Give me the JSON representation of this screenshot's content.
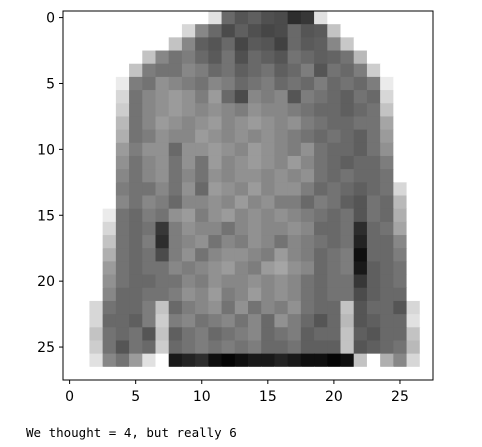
{
  "chart_data": {
    "type": "heatmap",
    "colormap": "gray_r",
    "value_range": [
      0,
      255
    ],
    "xlim": [
      -0.5,
      27.5
    ],
    "ylim": [
      27.5,
      -0.5
    ],
    "x_ticks": [
      0,
      5,
      10,
      15,
      20,
      25
    ],
    "y_ticks": [
      0,
      5,
      10,
      15,
      20,
      25
    ],
    "x_tick_labels": [
      "0",
      "5",
      "10",
      "15",
      "20",
      "25"
    ],
    "y_tick_labels": [
      "0",
      "5",
      "10",
      "15",
      "20",
      "25"
    ],
    "grid": false,
    "rows": [
      [
        0,
        0,
        0,
        0,
        0,
        0,
        0,
        0,
        0,
        0,
        0,
        30,
        150,
        170,
        160,
        175,
        180,
        210,
        200,
        30,
        0,
        0,
        0,
        0,
        0,
        0,
        0,
        0
      ],
      [
        0,
        0,
        0,
        0,
        0,
        0,
        0,
        0,
        0,
        40,
        120,
        150,
        180,
        160,
        175,
        185,
        180,
        150,
        170,
        165,
        60,
        0,
        0,
        0,
        0,
        0,
        0,
        0
      ],
      [
        0,
        0,
        0,
        0,
        0,
        0,
        0,
        0,
        60,
        120,
        160,
        170,
        150,
        185,
        165,
        170,
        190,
        150,
        165,
        160,
        120,
        55,
        0,
        0,
        0,
        0,
        0,
        0
      ],
      [
        0,
        0,
        0,
        0,
        0,
        0,
        60,
        120,
        140,
        130,
        150,
        165,
        140,
        175,
        150,
        160,
        170,
        140,
        150,
        160,
        155,
        140,
        70,
        0,
        0,
        0,
        0,
        0
      ],
      [
        0,
        0,
        0,
        0,
        0,
        60,
        130,
        140,
        140,
        120,
        130,
        150,
        140,
        160,
        150,
        140,
        160,
        150,
        130,
        170,
        140,
        150,
        130,
        50,
        0,
        0,
        0,
        0
      ],
      [
        0,
        0,
        0,
        0,
        20,
        130,
        140,
        110,
        120,
        130,
        140,
        120,
        130,
        150,
        140,
        130,
        150,
        140,
        150,
        130,
        150,
        140,
        150,
        130,
        20,
        0,
        0,
        0
      ],
      [
        0,
        0,
        0,
        0,
        40,
        140,
        120,
        110,
        100,
        110,
        130,
        100,
        150,
        180,
        120,
        130,
        120,
        170,
        130,
        140,
        150,
        160,
        140,
        150,
        40,
        0,
        0,
        0
      ],
      [
        0,
        0,
        0,
        0,
        50,
        140,
        120,
        110,
        100,
        110,
        120,
        110,
        120,
        130,
        110,
        120,
        120,
        130,
        140,
        150,
        150,
        160,
        150,
        140,
        60,
        0,
        0,
        0
      ],
      [
        0,
        0,
        0,
        0,
        70,
        140,
        120,
        100,
        110,
        120,
        110,
        100,
        120,
        110,
        100,
        110,
        120,
        110,
        130,
        140,
        150,
        150,
        140,
        140,
        90,
        0,
        0,
        0
      ],
      [
        0,
        0,
        0,
        0,
        80,
        140,
        130,
        110,
        120,
        120,
        100,
        110,
        120,
        110,
        120,
        110,
        120,
        130,
        140,
        150,
        140,
        150,
        160,
        140,
        100,
        0,
        0,
        0
      ],
      [
        0,
        0,
        0,
        0,
        100,
        130,
        110,
        110,
        150,
        110,
        110,
        100,
        110,
        120,
        100,
        110,
        120,
        130,
        110,
        140,
        150,
        150,
        160,
        140,
        110,
        0,
        0,
        0
      ],
      [
        0,
        0,
        0,
        0,
        110,
        140,
        120,
        110,
        140,
        110,
        140,
        100,
        120,
        110,
        100,
        110,
        120,
        100,
        120,
        140,
        150,
        160,
        150,
        150,
        130,
        0,
        0,
        0
      ],
      [
        0,
        0,
        0,
        0,
        120,
        140,
        120,
        110,
        140,
        120,
        140,
        110,
        120,
        110,
        110,
        120,
        110,
        120,
        110,
        140,
        150,
        140,
        150,
        150,
        140,
        0,
        0,
        0
      ],
      [
        0,
        0,
        0,
        0,
        130,
        140,
        140,
        120,
        140,
        110,
        150,
        100,
        110,
        120,
        100,
        120,
        110,
        110,
        130,
        150,
        140,
        150,
        160,
        150,
        140,
        40,
        0,
        0
      ],
      [
        0,
        0,
        0,
        0,
        120,
        140,
        120,
        130,
        150,
        120,
        120,
        110,
        120,
        100,
        120,
        110,
        130,
        130,
        150,
        130,
        140,
        160,
        170,
        140,
        150,
        70,
        0,
        0
      ],
      [
        0,
        0,
        0,
        20,
        140,
        150,
        130,
        140,
        110,
        100,
        130,
        110,
        100,
        120,
        110,
        120,
        110,
        120,
        130,
        140,
        150,
        140,
        170,
        140,
        150,
        80,
        0,
        0
      ],
      [
        0,
        0,
        0,
        40,
        140,
        150,
        140,
        200,
        130,
        110,
        120,
        120,
        140,
        120,
        110,
        120,
        120,
        110,
        120,
        150,
        150,
        140,
        210,
        150,
        140,
        90,
        0,
        0
      ],
      [
        0,
        0,
        0,
        60,
        140,
        150,
        130,
        210,
        130,
        120,
        110,
        140,
        120,
        130,
        110,
        120,
        140,
        120,
        130,
        140,
        150,
        140,
        220,
        150,
        150,
        120,
        0,
        0
      ],
      [
        0,
        0,
        0,
        80,
        140,
        150,
        140,
        180,
        130,
        110,
        140,
        120,
        110,
        110,
        120,
        130,
        100,
        120,
        130,
        150,
        140,
        130,
        240,
        150,
        150,
        130,
        0,
        0
      ],
      [
        0,
        0,
        0,
        100,
        140,
        150,
        140,
        140,
        120,
        130,
        120,
        110,
        100,
        120,
        130,
        100,
        90,
        110,
        120,
        150,
        140,
        130,
        230,
        160,
        150,
        140,
        0,
        0
      ],
      [
        0,
        0,
        0,
        110,
        140,
        150,
        150,
        140,
        140,
        120,
        130,
        110,
        120,
        120,
        110,
        120,
        110,
        120,
        140,
        150,
        140,
        140,
        200,
        160,
        150,
        140,
        0,
        0
      ],
      [
        0,
        0,
        0,
        120,
        150,
        150,
        140,
        140,
        130,
        110,
        120,
        100,
        130,
        120,
        100,
        120,
        110,
        120,
        140,
        150,
        140,
        140,
        180,
        160,
        150,
        150,
        0,
        0
      ],
      [
        0,
        0,
        40,
        140,
        150,
        150,
        130,
        60,
        150,
        130,
        120,
        110,
        140,
        110,
        140,
        120,
        130,
        110,
        140,
        150,
        150,
        60,
        170,
        150,
        150,
        170,
        40,
        0
      ],
      [
        0,
        0,
        40,
        150,
        150,
        160,
        130,
        50,
        130,
        120,
        140,
        130,
        120,
        140,
        120,
        150,
        110,
        130,
        150,
        170,
        150,
        70,
        170,
        160,
        150,
        150,
        30,
        0
      ],
      [
        0,
        0,
        60,
        140,
        150,
        140,
        170,
        60,
        160,
        140,
        130,
        150,
        140,
        130,
        120,
        150,
        140,
        130,
        160,
        150,
        150,
        60,
        160,
        170,
        150,
        150,
        60,
        0
      ],
      [
        0,
        0,
        50,
        140,
        170,
        140,
        150,
        50,
        150,
        140,
        130,
        140,
        130,
        140,
        130,
        150,
        150,
        140,
        160,
        160,
        160,
        60,
        170,
        160,
        150,
        140,
        70,
        0
      ],
      [
        0,
        0,
        30,
        120,
        140,
        100,
        30,
        0,
        230,
        220,
        210,
        240,
        250,
        240,
        230,
        230,
        220,
        230,
        240,
        240,
        250,
        240,
        60,
        0,
        80,
        120,
        40,
        0
      ],
      [
        0,
        0,
        0,
        0,
        0,
        0,
        0,
        0,
        0,
        0,
        0,
        0,
        0,
        0,
        0,
        0,
        0,
        0,
        0,
        0,
        0,
        0,
        0,
        0,
        0,
        0,
        0,
        0
      ]
    ]
  },
  "caption": "We thought = 4, but really 6"
}
